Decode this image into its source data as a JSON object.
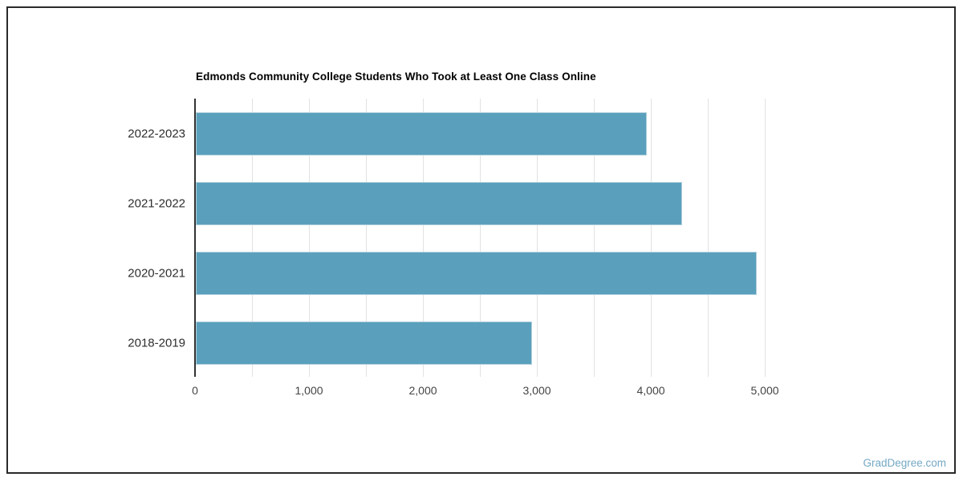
{
  "page": {
    "watermark": "GradDegree.com"
  },
  "colors": {
    "bar_fill": "#5AA0BC",
    "bar_edge": "#B5D2DF",
    "gridline": "#E2E2E2",
    "axis_line": "#333333",
    "frame_border": "#2A2A2A",
    "title_text": "#000000",
    "tick_label_text": "#444444",
    "category_label_text": "#2E2E2E",
    "watermark_text": "#74A8C5"
  },
  "chart_data": {
    "type": "bar",
    "orientation": "horizontal",
    "title": "Edmonds Community College Students Who Took at Least One Class Online",
    "categories": [
      "2022-2023",
      "2021-2022",
      "2020-2021",
      "2018-2019"
    ],
    "values": [
      3960,
      4270,
      4920,
      2950
    ],
    "xlabel": "",
    "ylabel": "",
    "xlim": [
      0,
      5500
    ],
    "grid": true,
    "grid_step": 500,
    "grid_max": 5000,
    "x_ticks": [
      0,
      1000,
      2000,
      3000,
      4000,
      5000
    ],
    "x_tick_labels": [
      "0",
      "1,000",
      "2,000",
      "3,000",
      "4,000",
      "5,000"
    ],
    "legend": "none"
  }
}
